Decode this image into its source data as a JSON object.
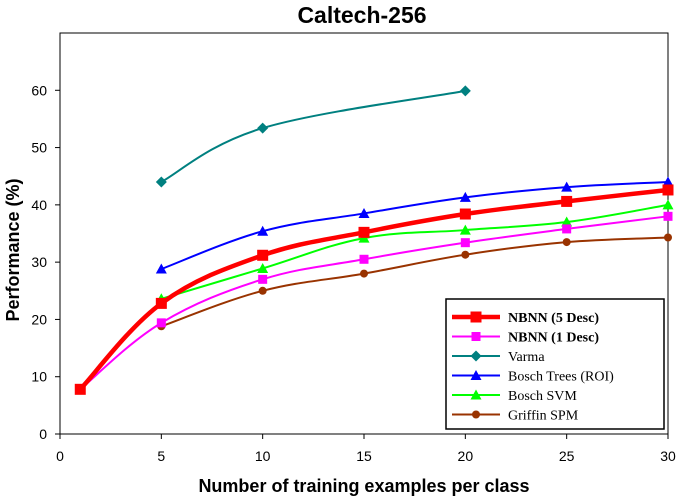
{
  "chart_data": {
    "type": "line",
    "title": "Caltech-256",
    "xlabel": "Number of training examples per class",
    "ylabel": "Performance (%)",
    "xlim": [
      0,
      30
    ],
    "ylim": [
      0,
      70
    ],
    "xticks": [
      0,
      5,
      10,
      15,
      20,
      25,
      30
    ],
    "yticks": [
      0,
      10,
      20,
      30,
      40,
      50,
      60
    ],
    "grid": false,
    "legend_position": "bottom-right",
    "series": [
      {
        "name": "NBNN (5 Desc)",
        "color": "#ff0000",
        "marker": "square",
        "line_width": 4.5,
        "marker_size": 11,
        "bold": true,
        "points": [
          [
            1,
            7.8
          ],
          [
            5,
            22.8
          ],
          [
            10,
            31.2
          ],
          [
            15,
            35.2
          ],
          [
            20,
            38.4
          ],
          [
            25,
            40.6
          ],
          [
            30,
            42.6
          ]
        ]
      },
      {
        "name": "NBNN (1 Desc)",
        "color": "#ff00ff",
        "marker": "square",
        "line_width": 2,
        "marker_size": 9,
        "bold": true,
        "points": [
          [
            1,
            7.8
          ],
          [
            5,
            19.4
          ],
          [
            10,
            27.0
          ],
          [
            15,
            30.5
          ],
          [
            20,
            33.4
          ],
          [
            25,
            35.8
          ],
          [
            30,
            38.0
          ]
        ]
      },
      {
        "name": "Varma",
        "color": "#008080",
        "marker": "diamond",
        "line_width": 2,
        "marker_size": 9,
        "bold": false,
        "points": [
          [
            5,
            44.0
          ],
          [
            10,
            53.4
          ],
          [
            20,
            59.9
          ]
        ]
      },
      {
        "name": "Bosch Trees (ROI)",
        "color": "#0000ff",
        "marker": "triangle",
        "line_width": 2,
        "marker_size": 9,
        "bold": false,
        "points": [
          [
            5,
            28.8
          ],
          [
            10,
            35.4
          ],
          [
            15,
            38.5
          ],
          [
            20,
            41.3
          ],
          [
            25,
            43.1
          ],
          [
            30,
            44.0
          ]
        ]
      },
      {
        "name": "Bosch SVM",
        "color": "#00ff00",
        "marker": "triangle",
        "line_width": 2,
        "marker_size": 9,
        "bold": false,
        "points": [
          [
            5,
            23.6
          ],
          [
            10,
            28.9
          ],
          [
            15,
            34.2
          ],
          [
            20,
            35.6
          ],
          [
            25,
            37.0
          ],
          [
            30,
            40.0
          ]
        ]
      },
      {
        "name": "Griffin SPM",
        "color": "#993300",
        "marker": "circle",
        "line_width": 2,
        "marker_size": 8,
        "bold": false,
        "points": [
          [
            5,
            18.8
          ],
          [
            10,
            25.0
          ],
          [
            15,
            28.0
          ],
          [
            20,
            31.3
          ],
          [
            25,
            33.5
          ],
          [
            30,
            34.3
          ]
        ]
      }
    ]
  }
}
